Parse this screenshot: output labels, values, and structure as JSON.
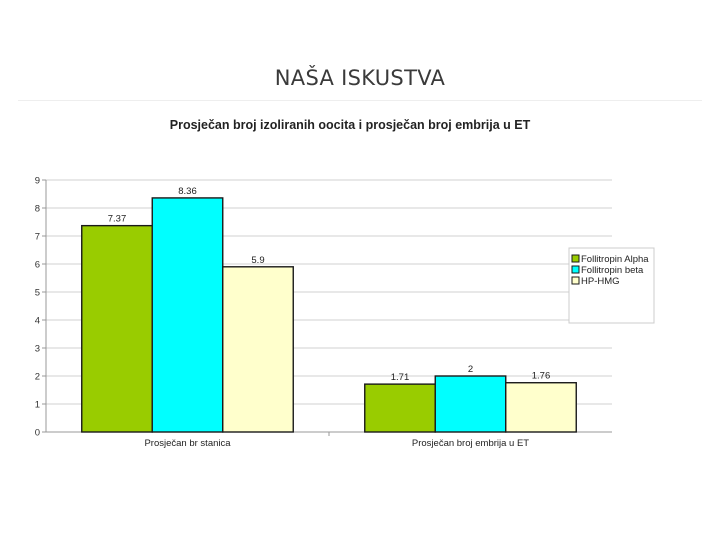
{
  "slide": {
    "title": "NAŠA ISKUSTVA"
  },
  "chart_data": {
    "type": "bar",
    "title": "Prosječan broj izoliranih oocita i prosječan broj embrija u ET",
    "categories": [
      "Prosječan br stanica",
      "Prosječan broj embrija u ET"
    ],
    "series": [
      {
        "name": "Follitropin Alpha",
        "values": [
          7.37,
          1.71
        ],
        "color": "#99cc00"
      },
      {
        "name": "Follitropin beta",
        "values": [
          8.36,
          2
        ],
        "color": "#00ffff"
      },
      {
        "name": "HP-HMG",
        "values": [
          5.9,
          1.76
        ],
        "color": "#ffffcc"
      }
    ],
    "data_labels": [
      [
        "7.37",
        "1.71"
      ],
      [
        "8.36",
        "2"
      ],
      [
        "5.9",
        "1.76"
      ]
    ],
    "ylim": [
      0,
      9
    ],
    "yticks": [
      0,
      1,
      2,
      3,
      4,
      5,
      6,
      7,
      8,
      9
    ],
    "grid": true,
    "legend_position": "right"
  }
}
